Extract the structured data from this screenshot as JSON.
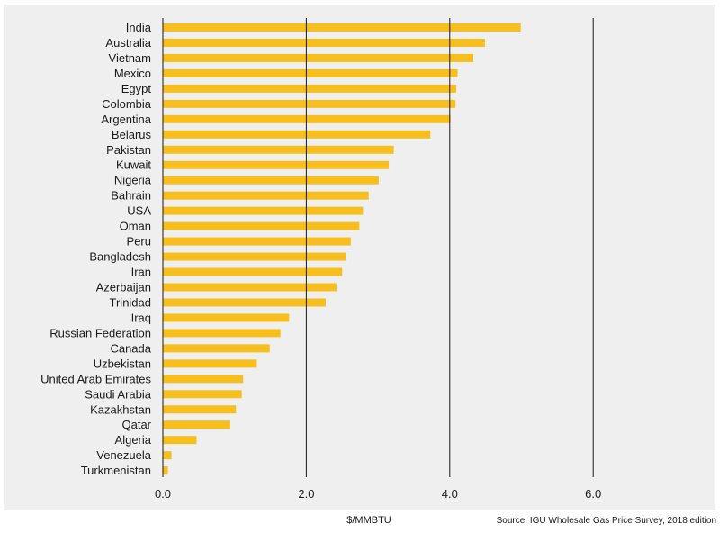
{
  "chart_data": {
    "type": "bar",
    "orientation": "horizontal",
    "categories": [
      "India",
      "Australia",
      "Vietnam",
      "Mexico",
      "Egypt",
      "Colombia",
      "Argentina",
      "Belarus",
      "Pakistan",
      "Kuwait",
      "Nigeria",
      "Bahrain",
      "USA",
      "Oman",
      "Peru",
      "Bangladesh",
      "Iran",
      "Azerbaijan",
      "Trinidad",
      "Iraq",
      "Russian Federation",
      "Canada",
      "Uzbekistan",
      "United Arab Emirates",
      "Saudi Arabia",
      "Kazakhstan",
      "Qatar",
      "Algeria",
      "Venezuela",
      "Turkmenistan"
    ],
    "values": [
      4.99,
      4.49,
      4.33,
      4.11,
      4.09,
      4.08,
      4.01,
      3.73,
      3.22,
      3.15,
      3.01,
      2.87,
      2.79,
      2.74,
      2.62,
      2.55,
      2.5,
      2.42,
      2.27,
      1.76,
      1.64,
      1.49,
      1.31,
      1.12,
      1.1,
      1.02,
      0.94,
      0.47,
      0.12,
      0.07
    ],
    "xticks": [
      "0.0",
      "2.0",
      "4.0",
      "6.0"
    ],
    "xtick_values": [
      0,
      2,
      4,
      6
    ],
    "xlim": [
      0,
      7.7
    ],
    "xlabel": "$/MMBTU",
    "grid": "vertical lines at major ticks",
    "bar_color": "#f6bf1d",
    "panel_color": "#efefef",
    "source": "Source: IGU Wholesale Gas Price Survey, 2018 edition"
  }
}
